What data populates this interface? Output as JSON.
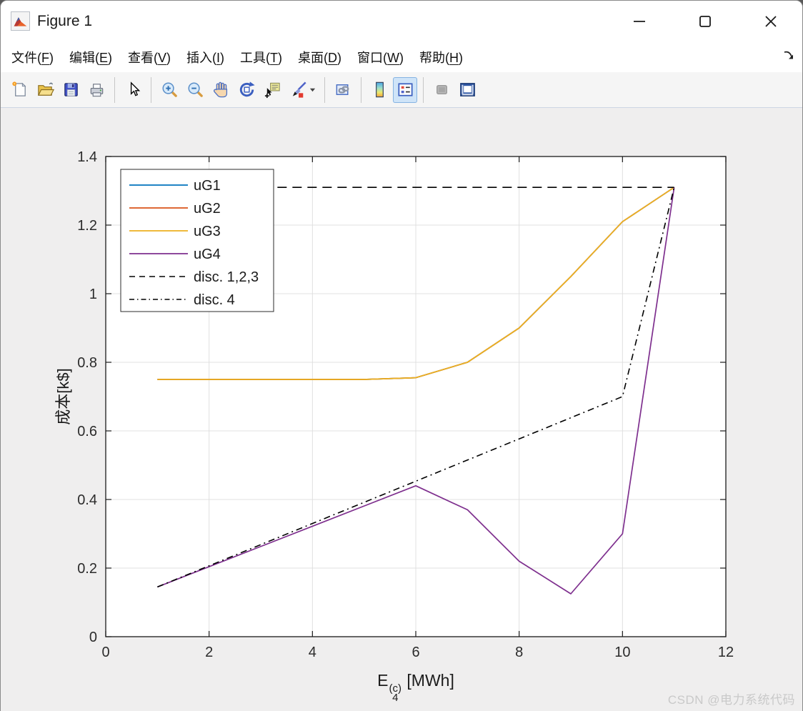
{
  "window": {
    "title": "Figure 1"
  },
  "menu_bar": {
    "items": [
      {
        "label": "文件",
        "mnemonic": "F"
      },
      {
        "label": "编辑",
        "mnemonic": "E"
      },
      {
        "label": "查看",
        "mnemonic": "V"
      },
      {
        "label": "插入",
        "mnemonic": "I"
      },
      {
        "label": "工具",
        "mnemonic": "T"
      },
      {
        "label": "桌面",
        "mnemonic": "D"
      },
      {
        "label": "窗口",
        "mnemonic": "W"
      },
      {
        "label": "帮助",
        "mnemonic": "H"
      }
    ]
  },
  "toolbar": {
    "buttons": [
      "new-figure",
      "open-file",
      "save-figure",
      "print-figure",
      "edit-plot",
      "zoom-in",
      "zoom-out",
      "pan",
      "rotate-3d",
      "data-cursor",
      "brush-data",
      "link-plot",
      "insert-colorbar",
      "insert-legend",
      "hide-plot-tools",
      "show-plot-tools"
    ],
    "active_button": "insert-legend"
  },
  "watermark": "CSDN @电力系统代码",
  "chart_data": {
    "type": "line",
    "title": "",
    "ylabel": "成本[k$]",
    "xlabel_parts": {
      "base": "E",
      "sub": "4",
      "sup": "(c)",
      "suffix": " [MWh]"
    },
    "xlim": [
      0,
      12
    ],
    "ylim": [
      0,
      1.4
    ],
    "xticks": [
      0,
      2,
      4,
      6,
      8,
      10,
      12
    ],
    "yticks": [
      0,
      0.2,
      0.4,
      0.6,
      0.8,
      1,
      1.2,
      1.4
    ],
    "grid": true,
    "legend_position": "top-left",
    "x": [
      1,
      2,
      3,
      4,
      5,
      6,
      7,
      8,
      9,
      10,
      11
    ],
    "series": [
      {
        "name": "uG1",
        "color": "#0072BD",
        "style": "solid",
        "y": [
          0.75,
          0.75,
          0.75,
          0.75,
          0.75,
          0.755,
          0.8,
          0.9,
          1.05,
          1.21,
          1.31
        ]
      },
      {
        "name": "uG2",
        "color": "#D95319",
        "style": "solid",
        "y": [
          0.75,
          0.75,
          0.75,
          0.75,
          0.75,
          0.755,
          0.8,
          0.9,
          1.05,
          1.21,
          1.31
        ]
      },
      {
        "name": "uG3",
        "color": "#EDB120",
        "style": "solid",
        "y": [
          0.75,
          0.75,
          0.75,
          0.75,
          0.75,
          0.755,
          0.8,
          0.9,
          1.05,
          1.21,
          1.31
        ]
      },
      {
        "name": "uG4",
        "color": "#7E2F8E",
        "style": "solid",
        "y": [
          0.145,
          0.204,
          0.263,
          0.322,
          0.381,
          0.44,
          0.37,
          0.22,
          0.125,
          0.3,
          1.31
        ]
      },
      {
        "name": "disc. 1,2,3",
        "color": "#000000",
        "style": "dashed",
        "x": [
          1,
          11
        ],
        "y": [
          1.31,
          1.31
        ]
      },
      {
        "name": "disc. 4",
        "color": "#000000",
        "style": "dashdot",
        "x": [
          1,
          10,
          11
        ],
        "y": [
          0.145,
          0.7,
          1.31
        ]
      }
    ]
  }
}
